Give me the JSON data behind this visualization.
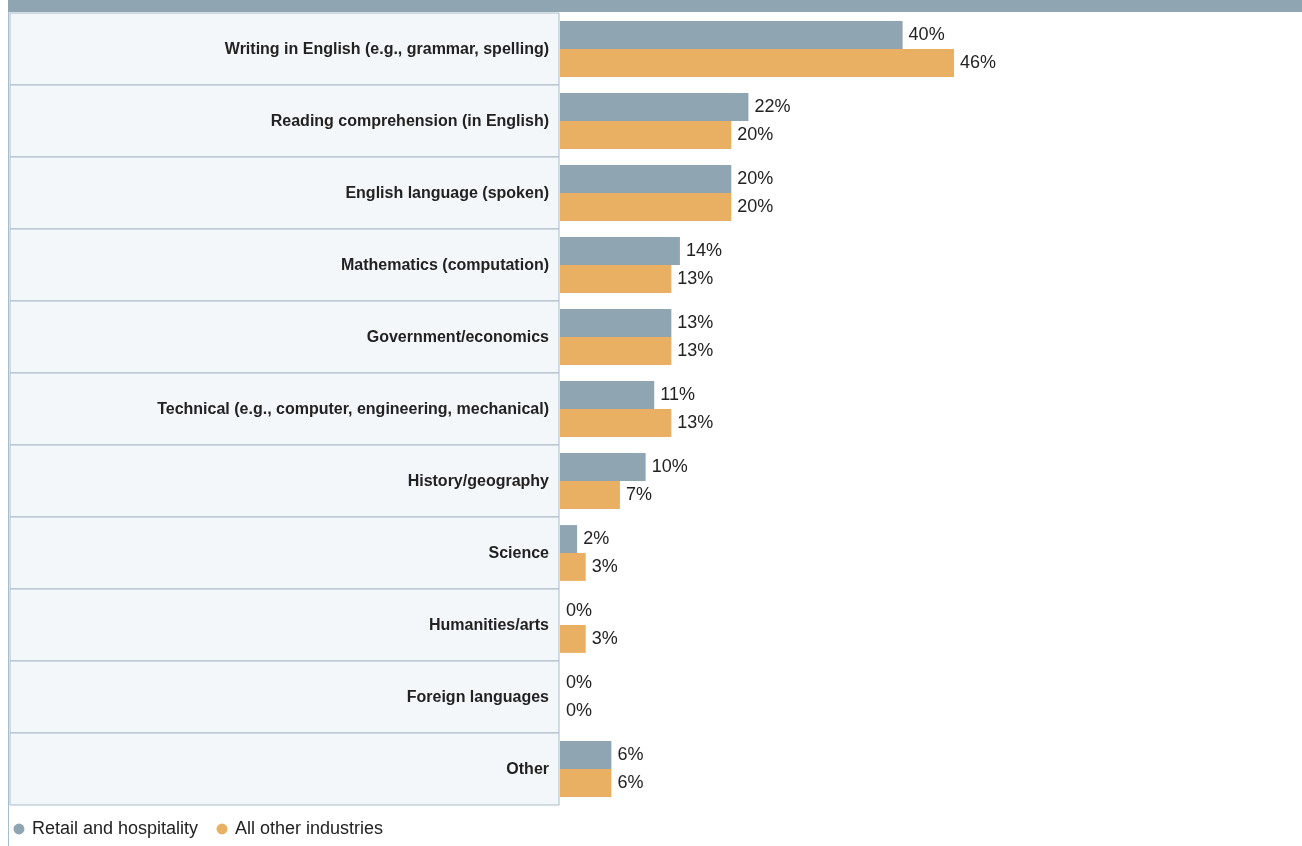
{
  "chart_data": {
    "type": "bar",
    "orientation": "horizontal",
    "legend": "bottom",
    "categories": [
      "Writing in English (e.g., grammar, spelling)",
      "Reading comprehension (in English)",
      "English language (spoken)",
      "Mathematics (computation)",
      "Government/economics",
      "Technical (e.g., computer, engineering, mechanical)",
      "History/geography",
      "Science",
      "Humanities/arts",
      "Foreign languages",
      "Other"
    ],
    "series": [
      {
        "name": "Retail and hospitality",
        "color": "#8fa5b2",
        "values": [
          40,
          22,
          20,
          14,
          13,
          11,
          10,
          2,
          0,
          0,
          6
        ],
        "value_labels": [
          "40%",
          "22%",
          "20%",
          "14%",
          "13%",
          "11%",
          "10%",
          "2%",
          "0%",
          "0%",
          "6%"
        ]
      },
      {
        "name": "All other industries",
        "color": "#e9b063",
        "values": [
          46,
          20,
          20,
          13,
          13,
          13,
          7,
          3,
          3,
          0,
          6
        ],
        "value_labels": [
          "46%",
          "20%",
          "20%",
          "13%",
          "13%",
          "13%",
          "7%",
          "3%",
          "3%",
          "0%",
          "6%"
        ]
      }
    ]
  }
}
